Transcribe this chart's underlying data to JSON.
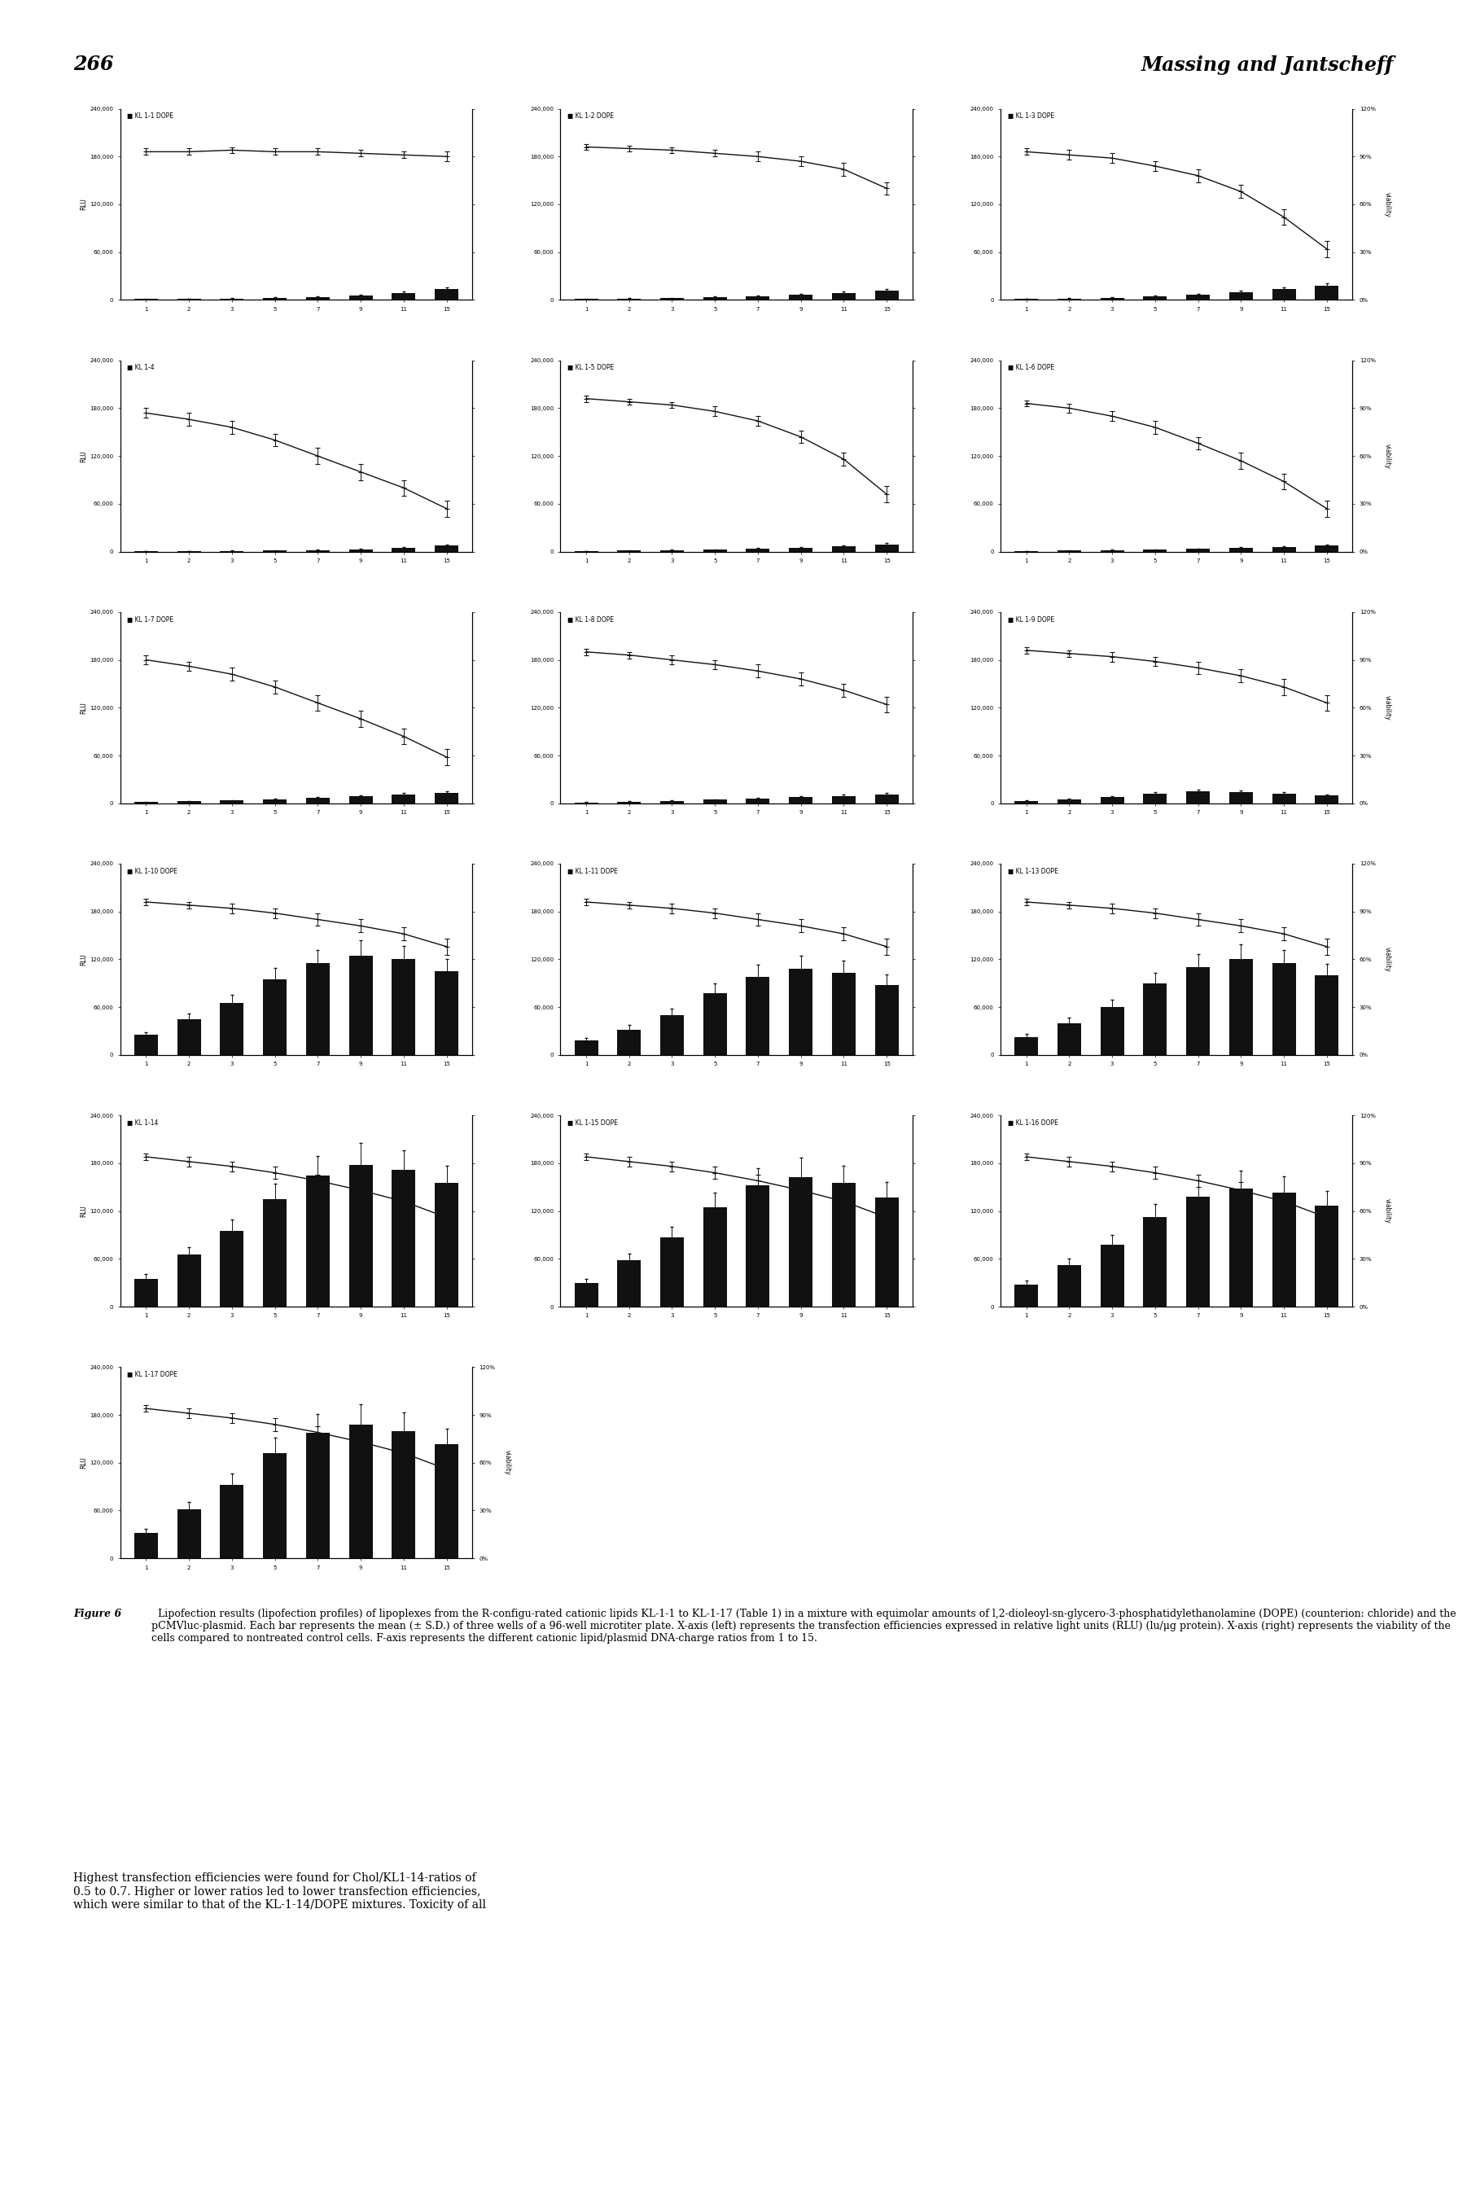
{
  "page_number": "266",
  "header_right": "Massing and Jantscheff",
  "x_ticks": [
    1,
    2,
    3,
    5,
    7,
    9,
    11,
    15
  ],
  "rlu_ylim": [
    0,
    240000
  ],
  "rlu_yticks": [
    0,
    60000,
    120000,
    180000,
    240000
  ],
  "rlu_ytick_labels": [
    "0",
    "60,000",
    "120,000",
    "180,000",
    "240,000"
  ],
  "viability_ylim": [
    0,
    1.2
  ],
  "viability_yticks": [
    0.0,
    0.3,
    0.6,
    0.9,
    1.2
  ],
  "viability_ytick_labels": [
    "0%",
    "30%",
    "60%",
    "90%",
    "120%"
  ],
  "plots": [
    {
      "label": "KL 1-1 DOPE",
      "rlu": [
        1000,
        1500,
        2000,
        3000,
        4000,
        6000,
        9000,
        14000
      ],
      "rlu_err": [
        300,
        400,
        500,
        600,
        700,
        900,
        1200,
        2000
      ],
      "viability": [
        0.93,
        0.93,
        0.94,
        0.93,
        0.93,
        0.92,
        0.91,
        0.9
      ],
      "viab_err": [
        0.02,
        0.02,
        0.02,
        0.02,
        0.02,
        0.02,
        0.02,
        0.03
      ],
      "row": 0,
      "col": 0
    },
    {
      "label": "KL 1-2 DOPE",
      "rlu": [
        1000,
        2000,
        2500,
        3500,
        5000,
        7000,
        9000,
        12000
      ],
      "rlu_err": [
        300,
        400,
        500,
        600,
        700,
        900,
        1200,
        1800
      ],
      "viability": [
        0.96,
        0.95,
        0.94,
        0.92,
        0.9,
        0.87,
        0.82,
        0.7
      ],
      "viab_err": [
        0.02,
        0.02,
        0.02,
        0.02,
        0.03,
        0.03,
        0.04,
        0.04
      ],
      "row": 0,
      "col": 1
    },
    {
      "label": "KL 1-3 DOPE",
      "rlu": [
        1500,
        2000,
        3000,
        5000,
        7000,
        10000,
        14000,
        18000
      ],
      "rlu_err": [
        400,
        500,
        600,
        800,
        1000,
        1400,
        2000,
        2500
      ],
      "viability": [
        0.93,
        0.91,
        0.89,
        0.84,
        0.78,
        0.68,
        0.52,
        0.32
      ],
      "viab_err": [
        0.02,
        0.03,
        0.03,
        0.03,
        0.04,
        0.04,
        0.05,
        0.05
      ],
      "row": 0,
      "col": 2
    },
    {
      "label": "KL 1-4",
      "rlu": [
        500,
        800,
        1000,
        1500,
        2000,
        3000,
        5000,
        8000
      ],
      "rlu_err": [
        200,
        300,
        350,
        450,
        550,
        700,
        900,
        1200
      ],
      "viability": [
        0.87,
        0.83,
        0.78,
        0.7,
        0.6,
        0.5,
        0.4,
        0.27
      ],
      "viab_err": [
        0.03,
        0.04,
        0.04,
        0.04,
        0.05,
        0.05,
        0.05,
        0.05
      ],
      "row": 1,
      "col": 0
    },
    {
      "label": "KL 1-5 DOPE",
      "rlu": [
        800,
        1200,
        1800,
        2500,
        3500,
        5000,
        7000,
        9000
      ],
      "rlu_err": [
        250,
        350,
        450,
        600,
        750,
        900,
        1100,
        1400
      ],
      "viability": [
        0.96,
        0.94,
        0.92,
        0.88,
        0.82,
        0.72,
        0.58,
        0.36
      ],
      "viab_err": [
        0.02,
        0.02,
        0.02,
        0.03,
        0.03,
        0.04,
        0.04,
        0.05
      ],
      "row": 1,
      "col": 1
    },
    {
      "label": "KL 1-6 DOPE",
      "rlu": [
        800,
        1200,
        1800,
        2500,
        3500,
        4500,
        6000,
        8000
      ],
      "rlu_err": [
        250,
        350,
        450,
        550,
        700,
        850,
        1000,
        1300
      ],
      "viability": [
        0.93,
        0.9,
        0.85,
        0.78,
        0.68,
        0.57,
        0.44,
        0.27
      ],
      "viab_err": [
        0.02,
        0.03,
        0.03,
        0.04,
        0.04,
        0.05,
        0.05,
        0.05
      ],
      "row": 1,
      "col": 2
    },
    {
      "label": "KL 1-7 DOPE",
      "rlu": [
        1500,
        2500,
        3500,
        5000,
        7000,
        9000,
        11000,
        13000
      ],
      "rlu_err": [
        400,
        550,
        700,
        900,
        1100,
        1400,
        1700,
        2000
      ],
      "viability": [
        0.9,
        0.86,
        0.81,
        0.73,
        0.63,
        0.53,
        0.42,
        0.29
      ],
      "viab_err": [
        0.03,
        0.03,
        0.04,
        0.04,
        0.05,
        0.05,
        0.05,
        0.05
      ],
      "row": 2,
      "col": 0
    },
    {
      "label": "KL 1-8 DOPE",
      "rlu": [
        1200,
        2000,
        3000,
        4500,
        6000,
        7500,
        9000,
        11000
      ],
      "rlu_err": [
        350,
        500,
        650,
        850,
        1050,
        1250,
        1500,
        1800
      ],
      "viability": [
        0.95,
        0.93,
        0.9,
        0.87,
        0.83,
        0.78,
        0.71,
        0.62
      ],
      "viab_err": [
        0.02,
        0.02,
        0.03,
        0.03,
        0.04,
        0.04,
        0.04,
        0.05
      ],
      "row": 2,
      "col": 1
    },
    {
      "label": "KL 1-9 DOPE",
      "rlu": [
        3000,
        5000,
        8000,
        12000,
        15000,
        14000,
        12000,
        10000
      ],
      "rlu_err": [
        600,
        900,
        1200,
        1700,
        2200,
        2000,
        1800,
        1500
      ],
      "viability": [
        0.96,
        0.94,
        0.92,
        0.89,
        0.85,
        0.8,
        0.73,
        0.63
      ],
      "viab_err": [
        0.02,
        0.02,
        0.03,
        0.03,
        0.04,
        0.04,
        0.05,
        0.05
      ],
      "row": 2,
      "col": 2
    },
    {
      "label": "KL 1-10 DOPE",
      "rlu": [
        25000,
        45000,
        65000,
        95000,
        115000,
        125000,
        120000,
        105000
      ],
      "rlu_err": [
        4000,
        7000,
        10000,
        14000,
        17000,
        19000,
        17000,
        15000
      ],
      "viability": [
        0.96,
        0.94,
        0.92,
        0.89,
        0.85,
        0.81,
        0.76,
        0.68
      ],
      "viab_err": [
        0.02,
        0.02,
        0.03,
        0.03,
        0.04,
        0.04,
        0.04,
        0.05
      ],
      "row": 3,
      "col": 0
    },
    {
      "label": "KL 1-11 DOPE",
      "rlu": [
        18000,
        32000,
        50000,
        78000,
        98000,
        108000,
        103000,
        88000
      ],
      "rlu_err": [
        3500,
        5500,
        8000,
        12000,
        15000,
        17000,
        15000,
        13000
      ],
      "viability": [
        0.96,
        0.94,
        0.92,
        0.89,
        0.85,
        0.81,
        0.76,
        0.68
      ],
      "viab_err": [
        0.02,
        0.02,
        0.03,
        0.03,
        0.04,
        0.04,
        0.04,
        0.05
      ],
      "row": 3,
      "col": 1
    },
    {
      "label": "KL 1-13 DOPE",
      "rlu": [
        22000,
        40000,
        60000,
        90000,
        110000,
        120000,
        115000,
        100000
      ],
      "rlu_err": [
        4000,
        6500,
        9500,
        13500,
        16500,
        18500,
        16500,
        14500
      ],
      "viability": [
        0.96,
        0.94,
        0.92,
        0.89,
        0.85,
        0.81,
        0.76,
        0.68
      ],
      "viab_err": [
        0.02,
        0.02,
        0.03,
        0.03,
        0.04,
        0.04,
        0.04,
        0.05
      ],
      "row": 3,
      "col": 2
    },
    {
      "label": "KL 1-14",
      "rlu": [
        35000,
        65000,
        95000,
        135000,
        165000,
        178000,
        172000,
        155000
      ],
      "rlu_err": [
        5500,
        9500,
        14000,
        19500,
        24000,
        27000,
        24000,
        22000
      ],
      "viability": [
        0.94,
        0.91,
        0.88,
        0.84,
        0.79,
        0.73,
        0.66,
        0.56
      ],
      "viab_err": [
        0.02,
        0.03,
        0.03,
        0.04,
        0.04,
        0.05,
        0.05,
        0.05
      ],
      "row": 4,
      "col": 0
    },
    {
      "label": "KL 1-15 DOPE",
      "rlu": [
        30000,
        58000,
        87000,
        125000,
        152000,
        162000,
        155000,
        137000
      ],
      "rlu_err": [
        5000,
        8500,
        13000,
        18000,
        22000,
        24500,
        22000,
        19500
      ],
      "viability": [
        0.94,
        0.91,
        0.88,
        0.84,
        0.79,
        0.73,
        0.66,
        0.56
      ],
      "viab_err": [
        0.02,
        0.03,
        0.03,
        0.04,
        0.04,
        0.05,
        0.05,
        0.05
      ],
      "row": 4,
      "col": 1
    },
    {
      "label": "KL 1-16 DOPE",
      "rlu": [
        28000,
        52000,
        78000,
        112000,
        138000,
        148000,
        143000,
        127000
      ],
      "rlu_err": [
        4500,
        8000,
        11500,
        16500,
        20000,
        22500,
        20000,
        18000
      ],
      "viability": [
        0.94,
        0.91,
        0.88,
        0.84,
        0.79,
        0.73,
        0.66,
        0.56
      ],
      "viab_err": [
        0.02,
        0.03,
        0.03,
        0.04,
        0.04,
        0.05,
        0.05,
        0.05
      ],
      "row": 4,
      "col": 2
    },
    {
      "label": "KL 1-17 DOPE",
      "rlu": [
        32000,
        62000,
        92000,
        132000,
        158000,
        168000,
        160000,
        143000
      ],
      "rlu_err": [
        5000,
        9000,
        14000,
        19000,
        23000,
        25500,
        23000,
        20000
      ],
      "viability": [
        0.94,
        0.91,
        0.88,
        0.84,
        0.79,
        0.73,
        0.66,
        0.56
      ],
      "viab_err": [
        0.02,
        0.03,
        0.03,
        0.04,
        0.04,
        0.05,
        0.05,
        0.05
      ],
      "row": 5,
      "col": 0
    }
  ],
  "bar_color": "#111111",
  "line_color": "#111111",
  "background_color": "#ffffff",
  "caption_bold": "Figure 6",
  "caption_rest": "  Lipofection results (lipofection profiles) of lipoplexes from the R-configu-rated cationic lipids KL-1-1 to KL-1-17 (Table 1) in a mixture with equimolar amounts of l,2-dioleoyl-sn-glycero-3-phosphatidylethanolamine (DOPE) (counterion: chloride) and the pCMVluc-plasmid. Each bar represents the mean (± S.D.) of three wells of a 96-well microtiter plate. X-axis (left) represents the transfection efficiencies expressed in relative light units (RLU) (lu/μg protein). X-axis (right) represents the viability of the cells compared to nontreated control cells. F-axis represents the different cationic lipid/plasmid DNA-charge ratios from 1 to 15.",
  "final_text": "Highest transfection efficiencies were found for Chol/KL1-14-ratios of\n0.5 to 0.7. Higher or lower ratios led to lower transfection efficiencies,\nwhich were similar to that of the KL-1-14/DOPE mixtures. Toxicity of all"
}
